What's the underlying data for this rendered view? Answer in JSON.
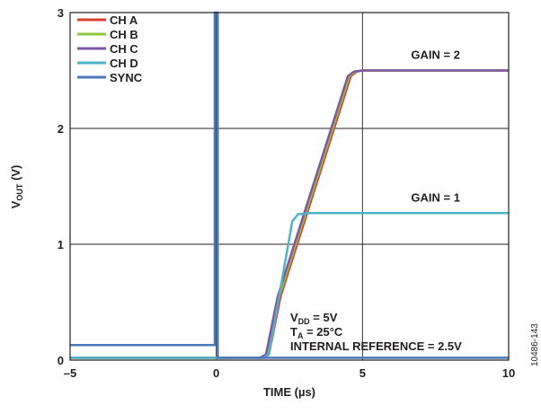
{
  "chart_data": {
    "type": "line",
    "x_label": "TIME (µs)",
    "y_label": "V",
    "y_label_sub": "OUT",
    "y_label_unit": " (V)",
    "xlim": [
      -5,
      10
    ],
    "ylim": [
      0,
      3
    ],
    "x_ticks": [
      -5,
      0,
      5,
      10
    ],
    "x_tick_labels": [
      "–5",
      "0",
      "5",
      "10"
    ],
    "y_ticks": [
      0,
      1,
      2,
      3
    ],
    "y_tick_labels": [
      "0",
      "1",
      "2",
      "3"
    ],
    "grid": true,
    "legend_position": "top-left",
    "series": [
      {
        "name": "CH A",
        "color": "#d9412f",
        "width": 2.5,
        "x": [
          -5,
          1.6,
          1.8,
          2.2,
          4.6,
          4.8,
          5.0,
          10
        ],
        "y": [
          0.02,
          0.02,
          0.05,
          0.55,
          2.45,
          2.49,
          2.5,
          2.5
        ]
      },
      {
        "name": "CH B",
        "color": "#8dc63f",
        "width": 2.5,
        "x": [
          -5,
          1.55,
          1.75,
          2.15,
          4.55,
          4.75,
          5.0,
          10
        ],
        "y": [
          0.02,
          0.02,
          0.05,
          0.55,
          2.45,
          2.49,
          2.5,
          2.5
        ]
      },
      {
        "name": "CH C",
        "color": "#7f56a3",
        "width": 2.5,
        "x": [
          -5,
          1.5,
          1.7,
          2.1,
          4.5,
          4.7,
          5.0,
          10
        ],
        "y": [
          0.02,
          0.02,
          0.05,
          0.55,
          2.45,
          2.49,
          2.5,
          2.5
        ]
      },
      {
        "name": "CH D",
        "color": "#4fb3c8",
        "width": 2.5,
        "x": [
          -5,
          1.6,
          1.8,
          2.6,
          2.8,
          3.2,
          10
        ],
        "y": [
          0.02,
          0.02,
          0.05,
          1.2,
          1.26,
          1.27,
          1.27
        ]
      },
      {
        "name": "SYNC",
        "color": "#4a78b8",
        "width": 2.5,
        "x": [
          -5,
          -0.05,
          -0.05,
          0.05,
          0.05,
          10
        ],
        "y": [
          0.13,
          0.13,
          3.0,
          3.0,
          0.02,
          0.02
        ]
      }
    ],
    "annotations": [
      {
        "text": "GAIN = 2",
        "x": 7.5,
        "y": 2.6
      },
      {
        "text": "GAIN = 1",
        "x": 7.5,
        "y": 1.37
      }
    ],
    "conditions": {
      "vdd_main": "V",
      "vdd_sub": "DD",
      "vdd_rest": " = 5V",
      "ta_main": "T",
      "ta_sub": "A",
      "ta_rest": " = 25°C",
      "ref": "INTERNAL REFERENCE = 2.5V"
    },
    "figure_code": "10486-143"
  }
}
